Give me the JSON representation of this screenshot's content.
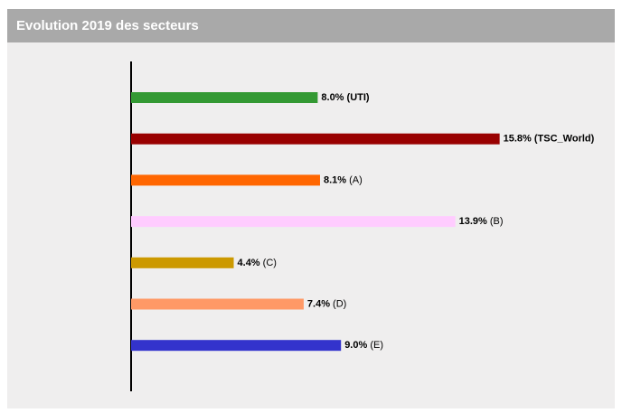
{
  "chart_data": {
    "type": "bar",
    "orientation": "horizontal",
    "title": "Evolution 2019 des secteurs",
    "categories": [
      "(UTI)",
      "(TSC_World)",
      "(A)",
      "(B)",
      "(C)",
      "(D)",
      "(E)"
    ],
    "values": [
      8.0,
      15.8,
      8.1,
      13.9,
      4.4,
      7.4,
      9.0
    ],
    "value_labels": [
      "8.0%",
      "15.8%",
      "8.1%",
      "13.9%",
      "4.4%",
      "7.4%",
      "9.0%"
    ],
    "colors": [
      "#339933",
      "#990000",
      "#ff6600",
      "#ffccff",
      "#cc9900",
      "#ff9966",
      "#3333cc"
    ],
    "category_bold": [
      true,
      true,
      false,
      false,
      false,
      false,
      false
    ]
  }
}
